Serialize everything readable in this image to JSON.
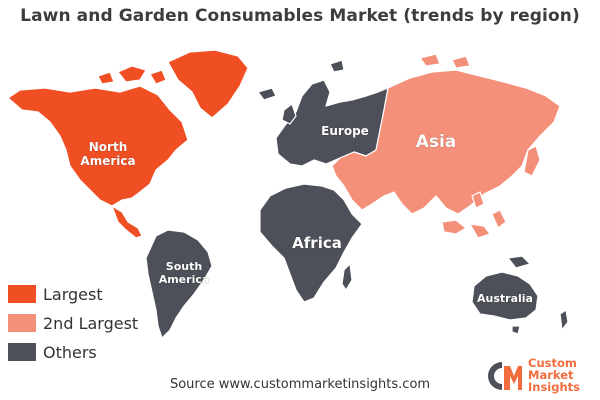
{
  "title": "Lawn and Garden Consumables Market (trends by region)",
  "colors": {
    "largest": "#f04e23",
    "second_largest": "#f4907a",
    "others": "#4d5059",
    "outline": "#ffffff",
    "brand": "#f26d3d",
    "brand_dark": "#4d5059"
  },
  "regions": [
    {
      "name": "North America",
      "lines": [
        "North",
        "America"
      ],
      "category": "Largest"
    },
    {
      "name": "Europe",
      "lines": [
        "Europe"
      ],
      "category": "Others"
    },
    {
      "name": "Asia",
      "lines": [
        "Asia"
      ],
      "category": "2nd Largest"
    },
    {
      "name": "Africa",
      "lines": [
        "Africa"
      ],
      "category": "Others"
    },
    {
      "name": "South America",
      "lines": [
        "South",
        "America"
      ],
      "category": "Others"
    },
    {
      "name": "Australia",
      "lines": [
        "Australia"
      ],
      "category": "Others"
    }
  ],
  "legend": [
    {
      "label": "Largest",
      "color": "#f04e23"
    },
    {
      "label": "2nd Largest",
      "color": "#f4907a"
    },
    {
      "label": "Others",
      "color": "#4d5059"
    }
  ],
  "source": "Source www.custommarketinsights.com",
  "brand": {
    "mark": "CMI",
    "lines": [
      "Custom",
      "Market",
      "Insights"
    ]
  }
}
